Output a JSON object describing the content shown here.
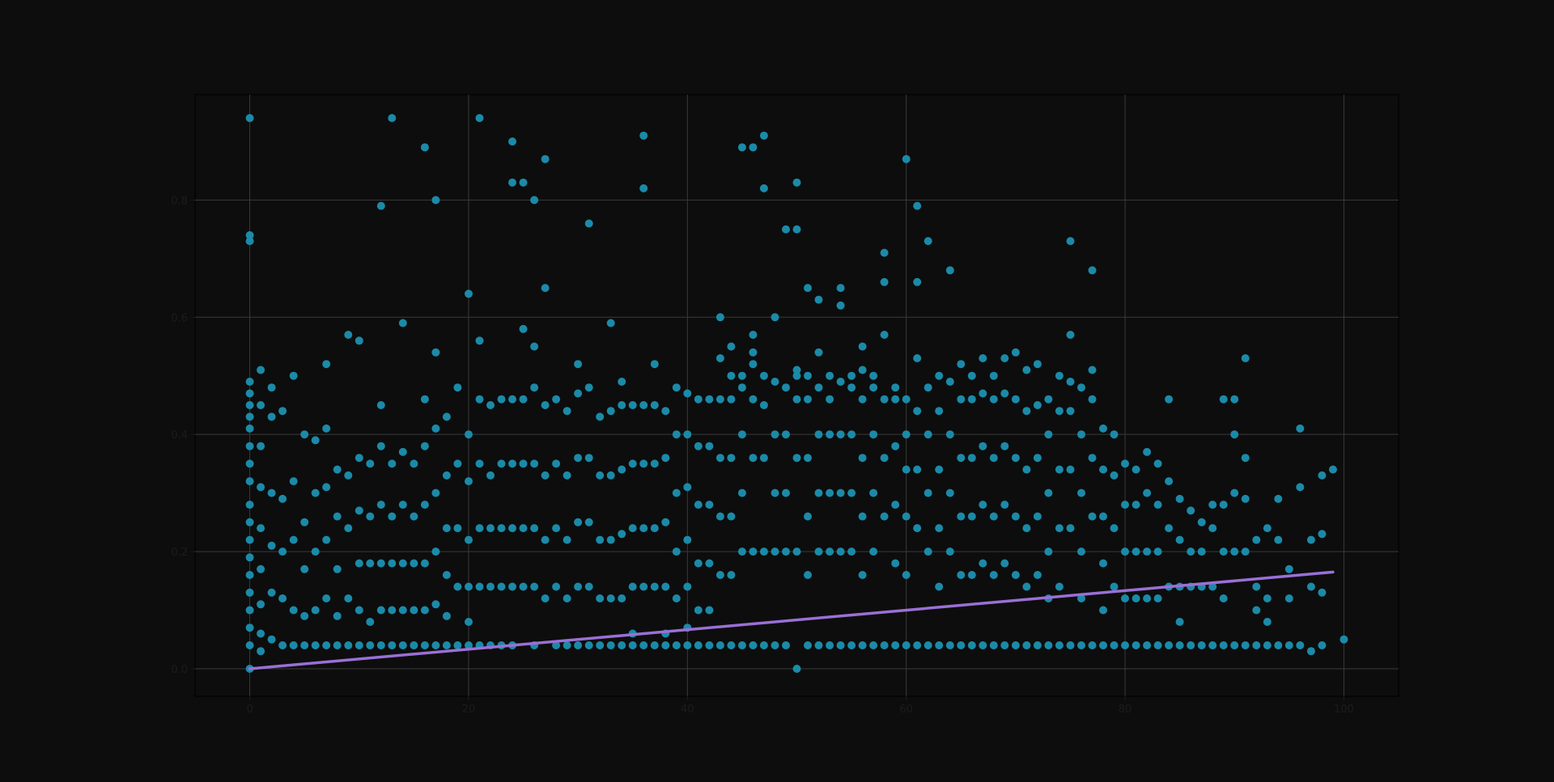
{
  "chart_data": {
    "type": "scatter",
    "title": "",
    "xlabel": "",
    "ylabel": "",
    "xlim": [
      -5,
      105
    ],
    "ylim": [
      -0.047,
      0.98
    ],
    "grid": true,
    "x_ticks": [
      0,
      20,
      40,
      60,
      80,
      100
    ],
    "x_tick_labels": [
      "0",
      "20",
      "40",
      "60",
      "80",
      "100"
    ],
    "y_ticks": [
      0.0,
      0.2,
      0.4,
      0.6,
      0.8
    ],
    "y_tick_labels": [
      "0.0",
      "0.2",
      "0.4",
      "0.6",
      "0.8"
    ],
    "colors": {
      "background": "#0d0d0d",
      "points": "#1b8aa8",
      "trend": "#9b6fd6",
      "grid": "#3a3a3a",
      "tick_text": "#1c1c1c"
    },
    "series": [
      {
        "kind": "points",
        "x": [
          0,
          0,
          0,
          0,
          0,
          0,
          0,
          0,
          0,
          0,
          0,
          0,
          0,
          0,
          0,
          0,
          0,
          0,
          0,
          0,
          0,
          1,
          1,
          1,
          1,
          1,
          1,
          1,
          1,
          1,
          2,
          2,
          2,
          2,
          2,
          2,
          3,
          3,
          3,
          3,
          3,
          4,
          4,
          4,
          4,
          4,
          5,
          5,
          5,
          5,
          5,
          6,
          6,
          6,
          6,
          6,
          7,
          7,
          7,
          7,
          7,
          7,
          8,
          8,
          8,
          8,
          8,
          9,
          9,
          9,
          9,
          9,
          10,
          10,
          10,
          10,
          10,
          10,
          11,
          11,
          11,
          11,
          11,
          12,
          12,
          12,
          12,
          12,
          12,
          12,
          13,
          13,
          13,
          13,
          13,
          13,
          14,
          14,
          14,
          14,
          14,
          14,
          15,
          15,
          15,
          15,
          15,
          16,
          16,
          16,
          16,
          16,
          16,
          16,
          17,
          17,
          17,
          17,
          17,
          17,
          17,
          18,
          18,
          18,
          18,
          18,
          18,
          19,
          19,
          19,
          19,
          19,
          20,
          20,
          20,
          20,
          20,
          20,
          20,
          21,
          21,
          21,
          21,
          21,
          21,
          21,
          22,
          22,
          22,
          22,
          22,
          23,
          23,
          23,
          23,
          23,
          24,
          24,
          24,
          24,
          24,
          24,
          24,
          25,
          25,
          25,
          25,
          25,
          25,
          26,
          26,
          26,
          26,
          26,
          26,
          26,
          27,
          27,
          27,
          27,
          27,
          27,
          28,
          28,
          28,
          28,
          28,
          29,
          29,
          29,
          29,
          29,
          30,
          30,
          30,
          30,
          30,
          30,
          31,
          31,
          31,
          31,
          31,
          31,
          32,
          32,
          32,
          32,
          32,
          33,
          33,
          33,
          33,
          33,
          33,
          34,
          34,
          34,
          34,
          34,
          34,
          35,
          35,
          35,
          35,
          35,
          35,
          36,
          36,
          36,
          36,
          36,
          36,
          36,
          37,
          37,
          37,
          37,
          37,
          37,
          38,
          38,
          38,
          38,
          38,
          38,
          39,
          39,
          39,
          39,
          39,
          39,
          40,
          40,
          40,
          40,
          40,
          40,
          40,
          41,
          41,
          41,
          41,
          41,
          41,
          42,
          42,
          42,
          42,
          42,
          42,
          43,
          43,
          43,
          43,
          43,
          43,
          43,
          44,
          44,
          44,
          44,
          44,
          44,
          44,
          45,
          45,
          45,
          45,
          45,
          45,
          45,
          46,
          46,
          46,
          46,
          46,
          46,
          46,
          46,
          47,
          47,
          47,
          47,
          47,
          47,
          47,
          48,
          48,
          48,
          48,
          48,
          48,
          49,
          49,
          49,
          49,
          49,
          49,
          50,
          50,
          50,
          50,
          50,
          50,
          50,
          50,
          51,
          51,
          51,
          51,
          51,
          51,
          51,
          52,
          52,
          52,
          52,
          52,
          52,
          52,
          53,
          53,
          53,
          53,
          53,
          53,
          54,
          54,
          54,
          54,
          54,
          54,
          54,
          55,
          55,
          55,
          55,
          55,
          55,
          56,
          56,
          56,
          56,
          56,
          56,
          56,
          57,
          57,
          57,
          57,
          57,
          57,
          58,
          58,
          58,
          58,
          58,
          58,
          58,
          59,
          59,
          59,
          59,
          59,
          59,
          60,
          60,
          60,
          60,
          60,
          60,
          60,
          61,
          61,
          61,
          61,
          61,
          61,
          61,
          62,
          62,
          62,
          62,
          62,
          62,
          63,
          63,
          63,
          63,
          63,
          63,
          64,
          64,
          64,
          64,
          64,
          64,
          65,
          65,
          65,
          65,
          65,
          65,
          66,
          66,
          66,
          66,
          66,
          66,
          67,
          67,
          67,
          67,
          67,
          67,
          68,
          68,
          68,
          68,
          68,
          68,
          69,
          69,
          69,
          69,
          69,
          69,
          70,
          70,
          70,
          70,
          70,
          70,
          71,
          71,
          71,
          71,
          71,
          71,
          72,
          72,
          72,
          72,
          72,
          72,
          73,
          73,
          73,
          73,
          73,
          73,
          74,
          74,
          74,
          74,
          74,
          74,
          75,
          75,
          75,
          75,
          75,
          75,
          75,
          76,
          76,
          76,
          76,
          76,
          76,
          77,
          77,
          77,
          77,
          77,
          77,
          78,
          78,
          78,
          78,
          78,
          78,
          79,
          79,
          79,
          79,
          79,
          80,
          80,
          80,
          80,
          80,
          81,
          81,
          81,
          81,
          81,
          82,
          82,
          82,
          82,
          82,
          83,
          83,
          83,
          83,
          83,
          84,
          84,
          84,
          84,
          84,
          85,
          85,
          85,
          85,
          85,
          86,
          86,
          86,
          86,
          87,
          87,
          87,
          87,
          88,
          88,
          88,
          88,
          89,
          89,
          89,
          89,
          89,
          90,
          90,
          90,
          90,
          90,
          91,
          91,
          91,
          91,
          91,
          92,
          92,
          92,
          92,
          93,
          93,
          93,
          93,
          94,
          94,
          94,
          95,
          95,
          95,
          96,
          96,
          96,
          97,
          97,
          97,
          98,
          98,
          98,
          98,
          99,
          100
        ],
        "y": [
          0.94,
          0.74,
          0.73,
          0.49,
          0.47,
          0.45,
          0.43,
          0.41,
          0.38,
          0.35,
          0.32,
          0.28,
          0.25,
          0.22,
          0.19,
          0.16,
          0.13,
          0.1,
          0.07,
          0.04,
          0.0,
          0.51,
          0.45,
          0.38,
          0.31,
          0.24,
          0.17,
          0.11,
          0.06,
          0.03,
          0.48,
          0.43,
          0.3,
          0.21,
          0.13,
          0.05,
          0.44,
          0.29,
          0.2,
          0.12,
          0.04,
          0.5,
          0.32,
          0.22,
          0.1,
          0.04,
          0.4,
          0.25,
          0.17,
          0.09,
          0.04,
          0.39,
          0.3,
          0.2,
          0.1,
          0.04,
          0.52,
          0.41,
          0.31,
          0.22,
          0.12,
          0.04,
          0.34,
          0.26,
          0.17,
          0.09,
          0.04,
          0.57,
          0.33,
          0.24,
          0.12,
          0.04,
          0.56,
          0.36,
          0.27,
          0.18,
          0.1,
          0.04,
          0.35,
          0.26,
          0.18,
          0.08,
          0.04,
          0.79,
          0.45,
          0.38,
          0.28,
          0.18,
          0.1,
          0.04,
          0.94,
          0.35,
          0.26,
          0.18,
          0.1,
          0.04,
          0.59,
          0.37,
          0.28,
          0.18,
          0.1,
          0.04,
          0.35,
          0.26,
          0.18,
          0.1,
          0.04,
          0.89,
          0.46,
          0.38,
          0.28,
          0.18,
          0.1,
          0.04,
          0.8,
          0.54,
          0.41,
          0.3,
          0.2,
          0.11,
          0.04,
          0.43,
          0.33,
          0.24,
          0.16,
          0.09,
          0.04,
          0.48,
          0.35,
          0.24,
          0.14,
          0.04,
          0.64,
          0.4,
          0.32,
          0.22,
          0.14,
          0.08,
          0.04,
          0.94,
          0.56,
          0.46,
          0.35,
          0.24,
          0.14,
          0.04,
          0.45,
          0.33,
          0.24,
          0.14,
          0.04,
          0.46,
          0.35,
          0.24,
          0.14,
          0.04,
          0.9,
          0.83,
          0.46,
          0.35,
          0.24,
          0.14,
          0.04,
          0.83,
          0.58,
          0.46,
          0.35,
          0.24,
          0.14,
          0.8,
          0.55,
          0.48,
          0.35,
          0.24,
          0.14,
          0.04,
          0.87,
          0.65,
          0.45,
          0.33,
          0.22,
          0.12,
          0.46,
          0.35,
          0.24,
          0.14,
          0.04,
          0.44,
          0.33,
          0.22,
          0.12,
          0.04,
          0.52,
          0.47,
          0.36,
          0.25,
          0.14,
          0.04,
          0.76,
          0.48,
          0.36,
          0.25,
          0.14,
          0.04,
          0.43,
          0.33,
          0.22,
          0.12,
          0.04,
          0.59,
          0.44,
          0.33,
          0.22,
          0.12,
          0.04,
          0.49,
          0.45,
          0.34,
          0.23,
          0.12,
          0.04,
          0.45,
          0.35,
          0.24,
          0.14,
          0.06,
          0.04,
          0.91,
          0.82,
          0.45,
          0.35,
          0.24,
          0.14,
          0.04,
          0.52,
          0.45,
          0.35,
          0.24,
          0.14,
          0.04,
          0.44,
          0.36,
          0.25,
          0.14,
          0.06,
          0.04,
          0.48,
          0.4,
          0.3,
          0.2,
          0.12,
          0.04,
          0.47,
          0.4,
          0.31,
          0.22,
          0.14,
          0.07,
          0.04,
          0.46,
          0.38,
          0.28,
          0.18,
          0.1,
          0.04,
          0.46,
          0.38,
          0.28,
          0.18,
          0.1,
          0.04,
          0.6,
          0.53,
          0.46,
          0.36,
          0.26,
          0.16,
          0.04,
          0.55,
          0.5,
          0.46,
          0.36,
          0.26,
          0.16,
          0.04,
          0.89,
          0.5,
          0.48,
          0.4,
          0.3,
          0.2,
          0.04,
          0.89,
          0.57,
          0.54,
          0.52,
          0.46,
          0.36,
          0.2,
          0.04,
          0.91,
          0.82,
          0.5,
          0.45,
          0.36,
          0.2,
          0.04,
          0.6,
          0.49,
          0.4,
          0.3,
          0.2,
          0.04,
          0.75,
          0.48,
          0.4,
          0.3,
          0.2,
          0.04,
          0.83,
          0.75,
          0.51,
          0.5,
          0.46,
          0.36,
          0.2,
          0.0,
          0.65,
          0.5,
          0.46,
          0.36,
          0.26,
          0.16,
          0.04,
          0.63,
          0.54,
          0.48,
          0.4,
          0.3,
          0.2,
          0.04,
          0.5,
          0.46,
          0.4,
          0.3,
          0.2,
          0.04,
          0.65,
          0.62,
          0.49,
          0.4,
          0.3,
          0.2,
          0.04,
          0.5,
          0.48,
          0.4,
          0.3,
          0.2,
          0.04,
          0.55,
          0.51,
          0.46,
          0.36,
          0.26,
          0.16,
          0.04,
          0.5,
          0.48,
          0.4,
          0.3,
          0.2,
          0.04,
          0.71,
          0.66,
          0.57,
          0.46,
          0.36,
          0.26,
          0.04,
          0.48,
          0.46,
          0.38,
          0.28,
          0.18,
          0.04,
          0.87,
          0.46,
          0.4,
          0.34,
          0.26,
          0.16,
          0.04,
          0.79,
          0.66,
          0.53,
          0.44,
          0.34,
          0.24,
          0.04,
          0.73,
          0.48,
          0.4,
          0.3,
          0.2,
          0.04,
          0.5,
          0.44,
          0.34,
          0.24,
          0.14,
          0.04,
          0.68,
          0.49,
          0.4,
          0.3,
          0.2,
          0.04,
          0.52,
          0.46,
          0.36,
          0.26,
          0.16,
          0.04,
          0.5,
          0.46,
          0.36,
          0.26,
          0.16,
          0.04,
          0.53,
          0.47,
          0.38,
          0.28,
          0.18,
          0.04,
          0.5,
          0.46,
          0.36,
          0.26,
          0.16,
          0.04,
          0.53,
          0.47,
          0.38,
          0.28,
          0.18,
          0.04,
          0.54,
          0.46,
          0.36,
          0.26,
          0.16,
          0.04,
          0.51,
          0.44,
          0.34,
          0.24,
          0.14,
          0.04,
          0.52,
          0.45,
          0.36,
          0.26,
          0.16,
          0.04,
          0.46,
          0.4,
          0.3,
          0.2,
          0.12,
          0.04,
          0.5,
          0.44,
          0.34,
          0.24,
          0.14,
          0.04,
          0.73,
          0.57,
          0.49,
          0.44,
          0.34,
          0.24,
          0.04,
          0.48,
          0.4,
          0.3,
          0.2,
          0.12,
          0.04,
          0.68,
          0.51,
          0.46,
          0.36,
          0.26,
          0.04,
          0.41,
          0.34,
          0.26,
          0.18,
          0.1,
          0.04,
          0.4,
          0.33,
          0.24,
          0.14,
          0.04,
          0.35,
          0.28,
          0.2,
          0.12,
          0.04,
          0.34,
          0.28,
          0.2,
          0.12,
          0.04,
          0.37,
          0.3,
          0.2,
          0.12,
          0.04,
          0.35,
          0.28,
          0.2,
          0.12,
          0.04,
          0.46,
          0.32,
          0.24,
          0.14,
          0.04,
          0.29,
          0.22,
          0.14,
          0.08,
          0.04,
          0.27,
          0.2,
          0.14,
          0.04,
          0.25,
          0.2,
          0.14,
          0.04,
          0.28,
          0.24,
          0.14,
          0.04,
          0.46,
          0.28,
          0.2,
          0.12,
          0.04,
          0.46,
          0.4,
          0.3,
          0.2,
          0.04,
          0.53,
          0.36,
          0.29,
          0.2,
          0.04,
          0.22,
          0.14,
          0.1,
          0.04,
          0.24,
          0.12,
          0.08,
          0.04,
          0.29,
          0.22,
          0.04,
          0.17,
          0.12,
          0.04,
          0.41,
          0.31,
          0.04,
          0.22,
          0.14,
          0.03,
          0.33,
          0.23,
          0.13,
          0.04,
          0.34,
          0.05
        ]
      },
      {
        "kind": "trend",
        "x": [
          0,
          99
        ],
        "y": [
          0.0,
          0.165
        ]
      }
    ]
  }
}
